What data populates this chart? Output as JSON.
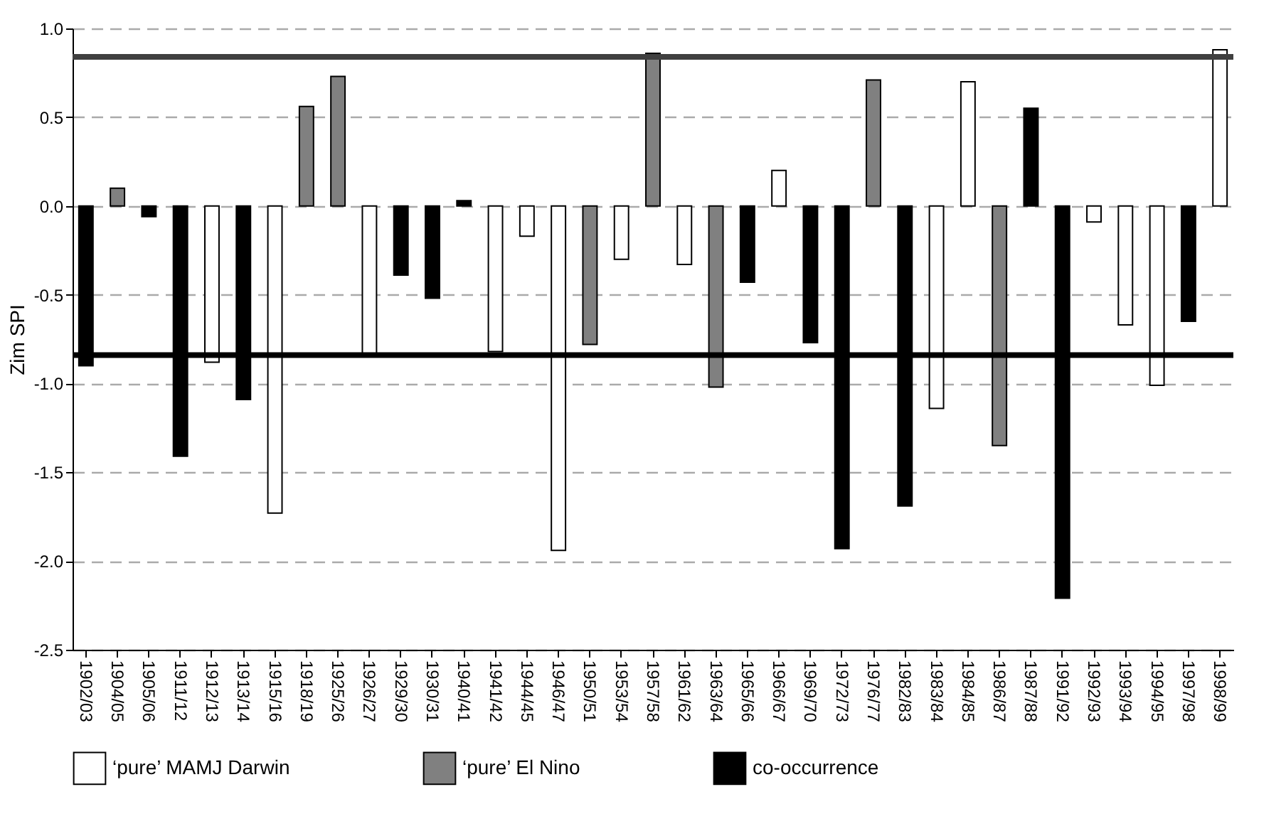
{
  "chart_data": {
    "type": "bar",
    "ylabel": "Zim SPI",
    "categories": [
      "1902/03",
      "1904/05",
      "1905/06",
      "1911/12",
      "1912/13",
      "1913/14",
      "1915/16",
      "1918/19",
      "1925/26",
      "1926/27",
      "1929/30",
      "1930/31",
      "1940/41",
      "1941/42",
      "1944/45",
      "1946/47",
      "1950/51",
      "1953/54",
      "1957/58",
      "1961/62",
      "1963/64",
      "1965/66",
      "1966/67",
      "1969/70",
      "1972/73",
      "1976/77",
      "1982/83",
      "1983/84",
      "1984/85",
      "1986/87",
      "1987/88",
      "1991/92",
      "1992/93",
      "1993/94",
      "1994/95",
      "1997/98",
      "1998/99"
    ],
    "series": [
      {
        "name": "‘pure’ MAMJ Darwin",
        "color": "#ffffff",
        "values": [
          null,
          null,
          null,
          null,
          -0.88,
          null,
          -1.73,
          null,
          null,
          -0.84,
          null,
          null,
          null,
          -0.82,
          -0.17,
          -1.94,
          null,
          -0.3,
          null,
          -0.33,
          null,
          null,
          0.2,
          null,
          null,
          null,
          null,
          -1.14,
          0.7,
          null,
          null,
          null,
          -0.09,
          -0.67,
          -1.01,
          null,
          0.88
        ]
      },
      {
        "name": "‘pure’ El Nino",
        "color": "#808080",
        "values": [
          null,
          0.1,
          null,
          null,
          null,
          null,
          null,
          0.56,
          0.73,
          null,
          null,
          null,
          null,
          null,
          null,
          null,
          -0.78,
          null,
          0.86,
          null,
          -1.02,
          null,
          null,
          null,
          null,
          0.71,
          null,
          null,
          null,
          -1.35,
          null,
          null,
          null,
          null,
          null,
          null,
          null
        ]
      },
      {
        "name": "co-occurrence",
        "color": "#000000",
        "values": [
          -0.9,
          null,
          -0.06,
          -1.41,
          null,
          -1.09,
          null,
          null,
          null,
          null,
          -0.39,
          -0.52,
          0.03,
          null,
          null,
          null,
          null,
          null,
          null,
          null,
          null,
          -0.43,
          null,
          -0.77,
          -1.93,
          null,
          -1.69,
          null,
          null,
          null,
          0.55,
          -2.21,
          null,
          null,
          null,
          -0.65,
          null
        ]
      }
    ],
    "ylim": [
      -2.5,
      1.0
    ],
    "yticks": [
      {
        "value": -2.5,
        "label": "-2.5"
      },
      {
        "value": -2,
        "label": "-2.0"
      },
      {
        "value": -1.5,
        "label": "-1.5"
      },
      {
        "value": -1,
        "label": "-1.0"
      },
      {
        "value": -0.5,
        "label": "-0.5"
      },
      {
        "value": 0,
        "label": "0.0"
      },
      {
        "value": 0.5,
        "label": "0.5"
      },
      {
        "value": 1,
        "label": "1.0"
      }
    ],
    "ref_lines": [
      {
        "axis": "y",
        "value": 0.84,
        "color": "#404040"
      },
      {
        "axis": "y",
        "value": -0.84,
        "color": "#000000"
      }
    ],
    "grid": "y",
    "legend": "bottom"
  }
}
